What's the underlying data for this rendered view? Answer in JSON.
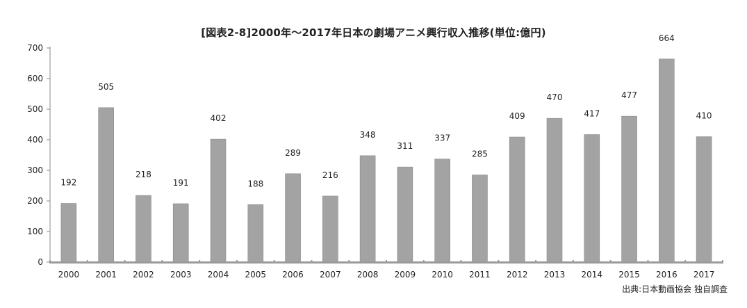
{
  "chart_data": {
    "type": "bar",
    "title": "[図表2-8]2000年〜2017年日本の劇場アニメ興行収入推移(単位:億円)",
    "categories": [
      "2000",
      "2001",
      "2002",
      "2003",
      "2004",
      "2005",
      "2006",
      "2007",
      "2008",
      "2009",
      "2010",
      "2011",
      "2012",
      "2013",
      "2014",
      "2015",
      "2016",
      "2017"
    ],
    "values": [
      192,
      505,
      218,
      191,
      402,
      188,
      289,
      216,
      348,
      311,
      337,
      285,
      409,
      470,
      417,
      477,
      664,
      410
    ],
    "ylim": [
      0,
      700
    ],
    "yticks": [
      0,
      100,
      200,
      300,
      400,
      500,
      600,
      700
    ],
    "xlabel": "",
    "ylabel": "",
    "grid": false,
    "bar_color": "#a3a3a3"
  },
  "source": "出典:日本動画協会 独自調査"
}
